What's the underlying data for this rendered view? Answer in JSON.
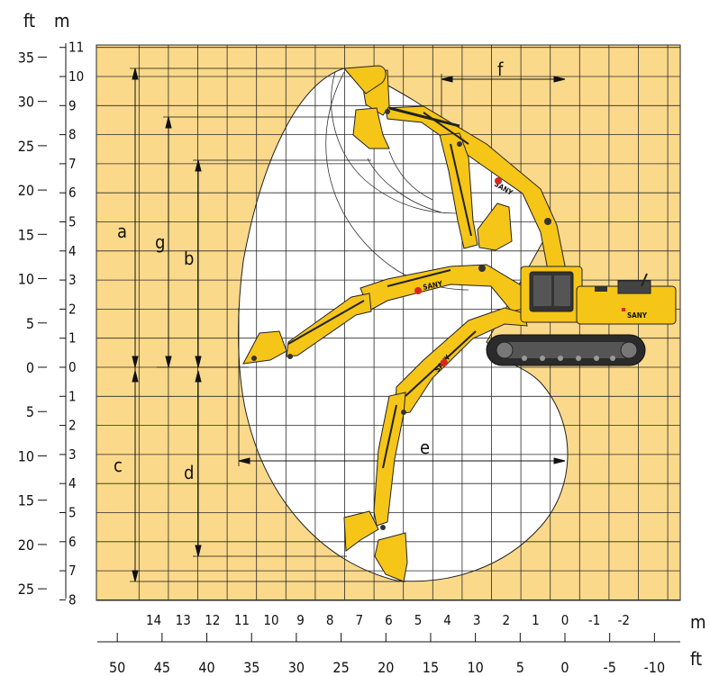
{
  "axes": {
    "unit_left_ft": "ft",
    "unit_left_m": "m",
    "unit_bottom_m": "m",
    "unit_bottom_ft": "ft",
    "left_m_ticks": [
      "11",
      "10",
      "9",
      "8",
      "7",
      "6",
      "5",
      "4",
      "3",
      "2",
      "1",
      "0",
      "1",
      "2",
      "3",
      "4",
      "5",
      "6",
      "7",
      "8"
    ],
    "left_ft_ticks": [
      "35",
      "30",
      "25",
      "20",
      "15",
      "10",
      "5",
      "0",
      "5",
      "10",
      "15",
      "20",
      "25"
    ],
    "bottom_m_ticks": [
      "14",
      "13",
      "12",
      "11",
      "10",
      "9",
      "8",
      "7",
      "6",
      "5",
      "4",
      "3",
      "2",
      "1",
      "0",
      "-1",
      "-2"
    ],
    "bottom_ft_ticks": [
      "50",
      "45",
      "40",
      "35",
      "30",
      "25",
      "20",
      "15",
      "10",
      "5",
      "0",
      "-5",
      "-10"
    ]
  },
  "dimensions": {
    "a": "a",
    "g": "g",
    "b": "b",
    "c": "c",
    "d": "d",
    "e": "e",
    "f": "f"
  },
  "colors": {
    "grid_background": "#FBD98A",
    "grid_line": "#2a2a2a",
    "machine_yellow": "#F5C518",
    "machine_dark": "#2b2b2b",
    "brand_red": "#D9261C"
  },
  "machine": {
    "brand_label_1": "SANY",
    "brand_label_2": "SANY",
    "brand_label_3": "SANY",
    "brand_label_4": "SANY"
  }
}
